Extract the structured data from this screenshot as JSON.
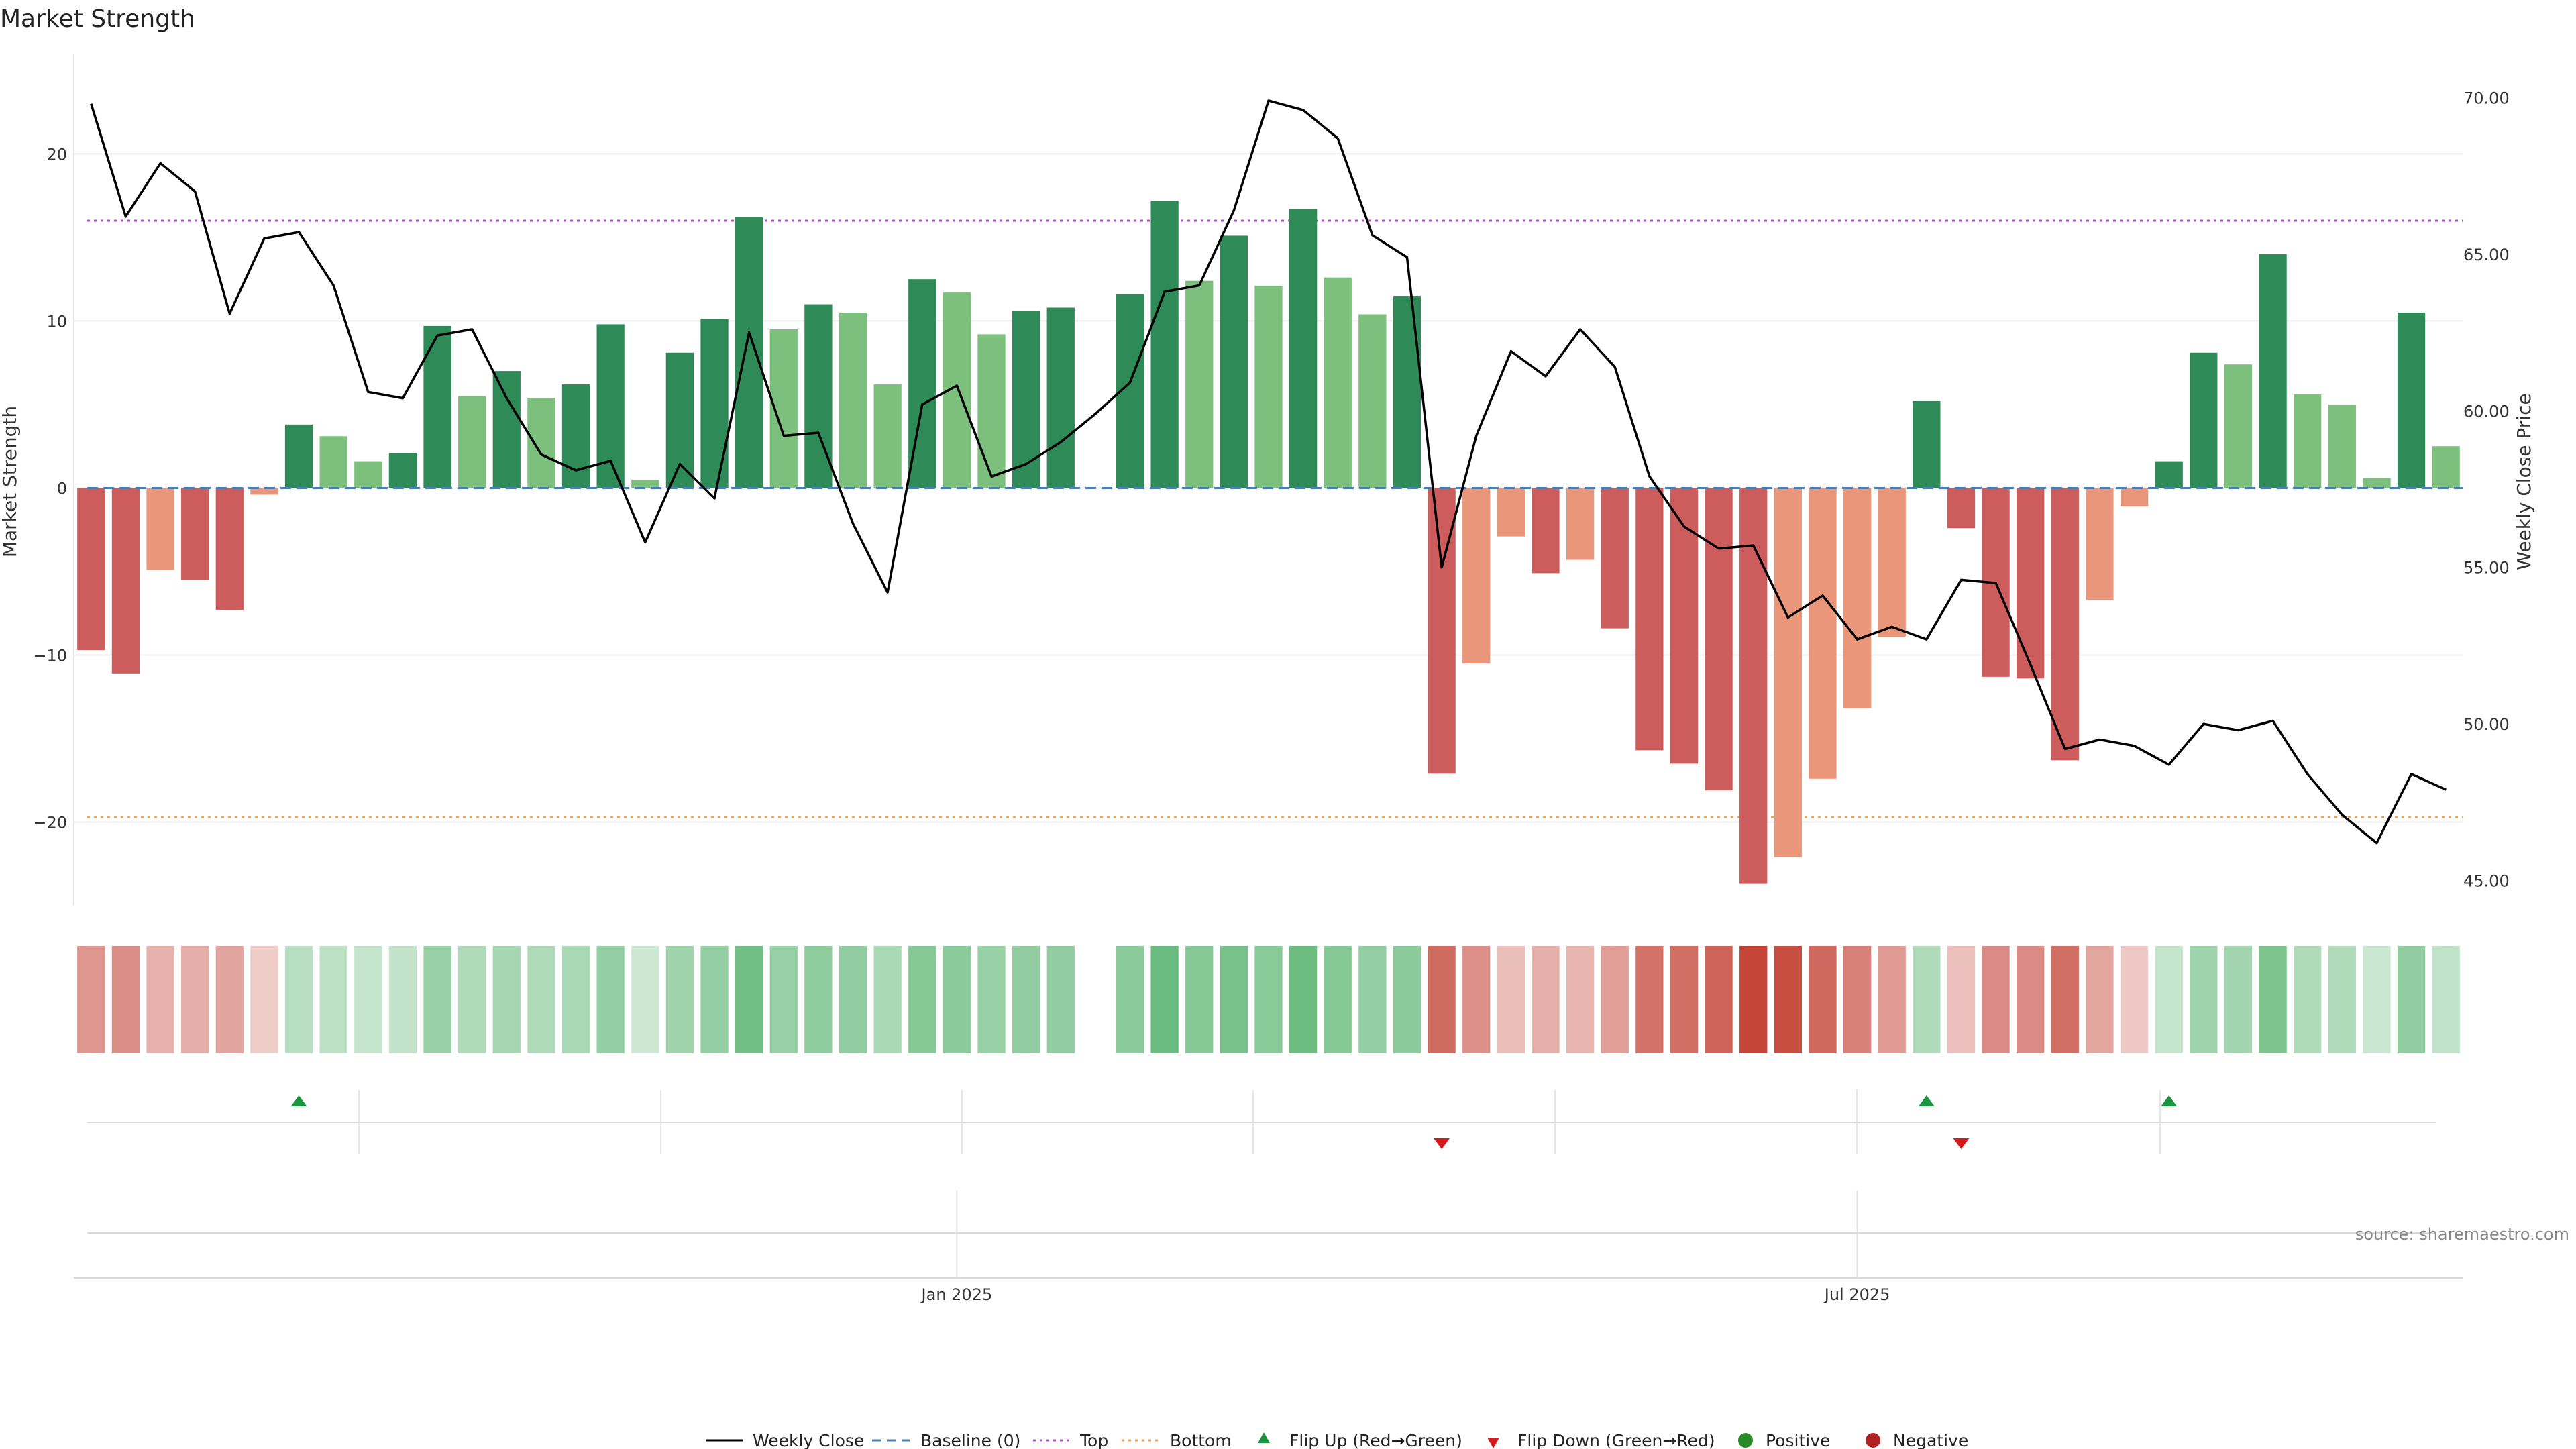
{
  "chart_data": {
    "type": "bar",
    "title": "Market Strength",
    "ylabel": "Market Strength",
    "y2label": "Weekly Close Price",
    "ylim": [
      -25,
      26
    ],
    "y2lim": [
      44.2,
      71.4
    ],
    "yticks": [
      -20,
      -10,
      0,
      10,
      20
    ],
    "y2ticks": [
      "45.00",
      "50.00",
      "55.00",
      "60.00",
      "65.00",
      "70.00"
    ],
    "xticks": [
      {
        "index": 25.5,
        "label": "Jan 2025"
      },
      {
        "index": 51.5,
        "label": "Jul 2025"
      }
    ],
    "top_line": 16,
    "bottom_line": -19.7,
    "bar_values": [
      -9.7,
      -11.1,
      -4.9,
      -5.5,
      -7.3,
      -0.4,
      3.8,
      3.1,
      1.6,
      2.1,
      9.7,
      5.5,
      7.0,
      5.4,
      6.2,
      9.8,
      0.5,
      8.1,
      10.1,
      16.2,
      9.5,
      11.0,
      10.5,
      6.2,
      12.5,
      11.7,
      9.2,
      10.6,
      10.8,
      null,
      11.6,
      17.2,
      12.4,
      15.1,
      12.1,
      16.7,
      12.6,
      10.4,
      11.5,
      -17.1,
      -10.5,
      -2.9,
      -5.1,
      -4.3,
      -8.4,
      -15.7,
      -16.5,
      -18.1,
      -23.7,
      -22.1,
      -17.4,
      -13.2,
      -8.9,
      5.2,
      -2.4,
      -11.3,
      -11.4,
      -16.3,
      -6.7,
      -1.1,
      1.6,
      8.1,
      7.4,
      14.0,
      5.6,
      5.0,
      0.6,
      10.5,
      2.5
    ],
    "bar_shades": [
      "dark",
      "dark",
      "light",
      "dark",
      "dark",
      "light",
      "dark",
      "light",
      "light",
      "dark",
      "dark",
      "light",
      "dark",
      "light",
      "dark",
      "dark",
      "light",
      "dark",
      "dark",
      "dark",
      "light",
      "dark",
      "light",
      "light",
      "dark",
      "light",
      "light",
      "dark",
      "dark",
      null,
      "dark",
      "dark",
      "light",
      "dark",
      "light",
      "dark",
      "light",
      "light",
      "dark",
      "dark",
      "light",
      "light",
      "dark",
      "light",
      "dark",
      "dark",
      "dark",
      "dark",
      "dark",
      "light",
      "light",
      "light",
      "light",
      "dark",
      "dark",
      "dark",
      "dark",
      "dark",
      "light",
      "light",
      "dark",
      "dark",
      "light",
      "dark",
      "light",
      "light",
      "light",
      "dark",
      "light"
    ],
    "weekly_close": [
      69.8,
      66.2,
      67.9,
      67.0,
      63.1,
      65.5,
      65.7,
      64.0,
      60.6,
      60.4,
      62.4,
      62.6,
      60.4,
      58.6,
      58.1,
      58.4,
      55.8,
      58.3,
      57.2,
      62.5,
      59.2,
      59.3,
      56.4,
      54.2,
      60.2,
      60.8,
      57.9,
      58.3,
      59.0,
      59.9,
      60.9,
      63.8,
      64.0,
      66.4,
      69.9,
      69.6,
      68.7,
      65.6,
      64.9,
      55.0,
      59.2,
      61.9,
      61.1,
      62.6,
      61.4,
      57.9,
      56.3,
      55.6,
      55.7,
      53.4,
      54.1,
      52.7,
      53.1,
      52.7,
      54.6,
      54.5,
      51.9,
      49.2,
      49.5,
      49.3,
      48.7,
      50.0,
      49.8,
      50.1,
      48.4,
      47.1,
      46.2,
      48.4,
      47.9
    ],
    "heat_strip": [
      -9.7,
      -11.1,
      -4.9,
      -5.5,
      -7.3,
      -0.4,
      3.8,
      3.1,
      1.6,
      2.1,
      9.7,
      5.5,
      7.0,
      5.4,
      6.2,
      9.8,
      0.5,
      8.1,
      10.1,
      16.2,
      9.5,
      11.0,
      10.5,
      6.2,
      12.5,
      11.7,
      9.2,
      10.6,
      10.8,
      null,
      11.6,
      17.2,
      12.4,
      15.1,
      12.1,
      16.7,
      12.6,
      10.4,
      11.5,
      -17.1,
      -10.5,
      -2.9,
      -5.1,
      -4.3,
      -8.4,
      -15.7,
      -16.5,
      -18.1,
      -23.7,
      -22.1,
      -17.4,
      -13.2,
      -8.9,
      5.2,
      -2.4,
      -11.3,
      -11.4,
      -16.3,
      -6.7,
      -1.1,
      1.6,
      8.1,
      7.4,
      14.0,
      5.6,
      5.0,
      0.6,
      10.5,
      2.5
    ],
    "flip_up_indices": [
      6,
      53,
      60
    ],
    "flip_down_indices": [
      39,
      54
    ],
    "colors": {
      "positive_dark": "#2e8b57",
      "positive_light": "#7dc07d",
      "negative_dark": "#cd5c5c",
      "negative_light": "#e9967a",
      "top": "#b04fc8",
      "bottom": "#f0a050",
      "baseline": "#4a7fb0",
      "flip_up": "#1a9641",
      "flip_down": "#d7191c",
      "legend_positive": "#2a8a2a",
      "legend_negative": "#b22222",
      "line": "#000000"
    }
  },
  "source_text": "source: sharemaestro.com",
  "legend": {
    "weekly_close": "Weekly Close",
    "baseline": "Baseline (0)",
    "top": "Top",
    "bottom": "Bottom",
    "flip_up": "Flip Up (Red→Green)",
    "flip_down": "Flip Down (Green→Red)",
    "positive": "Positive",
    "negative": "Negative"
  }
}
